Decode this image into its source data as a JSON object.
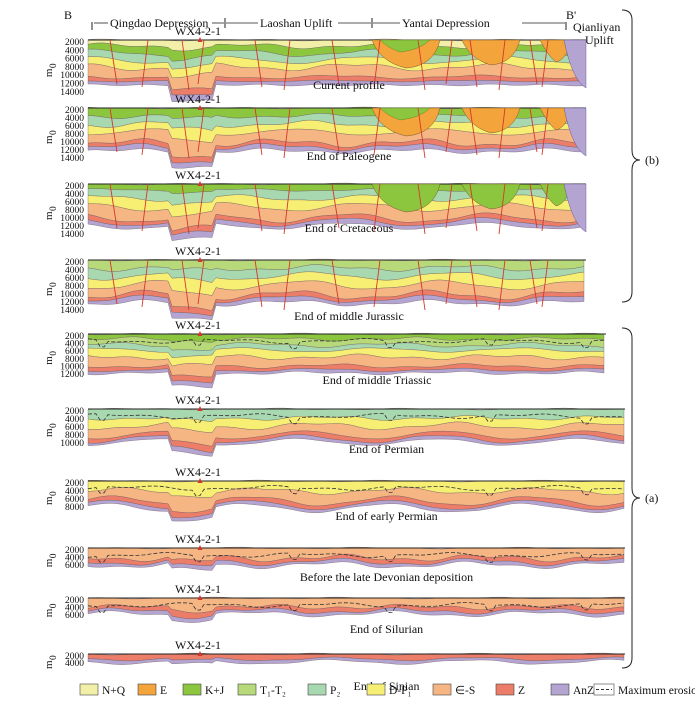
{
  "figure": {
    "section_start": "B",
    "section_end": "B'",
    "regions": [
      "Qingdao Depression",
      "Laoshan Uplift",
      "Yantai Depression"
    ],
    "corner_region": [
      "Qianliyan",
      "Uplift"
    ],
    "group_labels": {
      "b": "(b)",
      "a": "(a)"
    },
    "axis_unit": "m",
    "axis_unit_sub": "0",
    "well": "WX4-2-1",
    "well_alt": "WX4-2-1"
  },
  "panels": [
    {
      "caption": "Current profile",
      "well": "WX4-2-1",
      "ticks": [
        "2000",
        "4000",
        "6000",
        "8000",
        "10000",
        "12000",
        "14000"
      ]
    },
    {
      "caption": "End of Paleogene",
      "well": "WX4-2-1",
      "ticks": [
        "2000",
        "4000",
        "6000",
        "8000",
        "10000",
        "12000",
        "14000"
      ]
    },
    {
      "caption": "End of Cretaceous",
      "well": "WX4-2-1",
      "ticks": [
        "2000",
        "4000",
        "6000",
        "8000",
        "10000",
        "12000",
        "14000"
      ]
    },
    {
      "caption": "End of middle Jurassic",
      "well": "WX4-2-1",
      "ticks": [
        "2000",
        "4000",
        "6000",
        "8000",
        "10000",
        "12000",
        "14000"
      ]
    },
    {
      "caption": "End of middle Triassic",
      "well": "WX4-2-1",
      "ticks": [
        "2000",
        "4000",
        "6000",
        "8000",
        "10000",
        "12000"
      ]
    },
    {
      "caption": "End of Permian",
      "well": "WX4-2-1",
      "ticks": [
        "2000",
        "4000",
        "6000",
        "8000",
        "10000"
      ]
    },
    {
      "caption": "End of early Permian",
      "well": "WX4-2-1",
      "ticks": [
        "2000",
        "4000",
        "6000",
        "8000"
      ]
    },
    {
      "caption": "Before the late Devonian deposition",
      "well": "WX4-2-1",
      "ticks": [
        "2000",
        "4000",
        "6000"
      ]
    },
    {
      "caption": "End of Silurian",
      "well": "WX4-2-1",
      "ticks": [
        "2000",
        "4000",
        "6000"
      ]
    },
    {
      "caption": "End of Sinian",
      "well": "WX4-2-1",
      "ticks": [
        "2000",
        "4000"
      ]
    }
  ],
  "legend": [
    {
      "label": "N+Q",
      "color": "#f2f0a8"
    },
    {
      "label": "E",
      "color": "#f3a43a"
    },
    {
      "label": "K+J",
      "color": "#8cc63f"
    },
    {
      "label": "T₁-T₂",
      "color": "#b7d97a"
    },
    {
      "label": "P₂",
      "color": "#a8d8b0"
    },
    {
      "label": "D-P₁",
      "color": "#f7ef74"
    },
    {
      "label": "∈-S",
      "color": "#f6b684"
    },
    {
      "label": "Z",
      "color": "#ec7d68"
    },
    {
      "label": "AnZ",
      "color": "#b4a4d2"
    },
    {
      "label": "Maximum erosion line",
      "color": "#333333"
    }
  ]
}
